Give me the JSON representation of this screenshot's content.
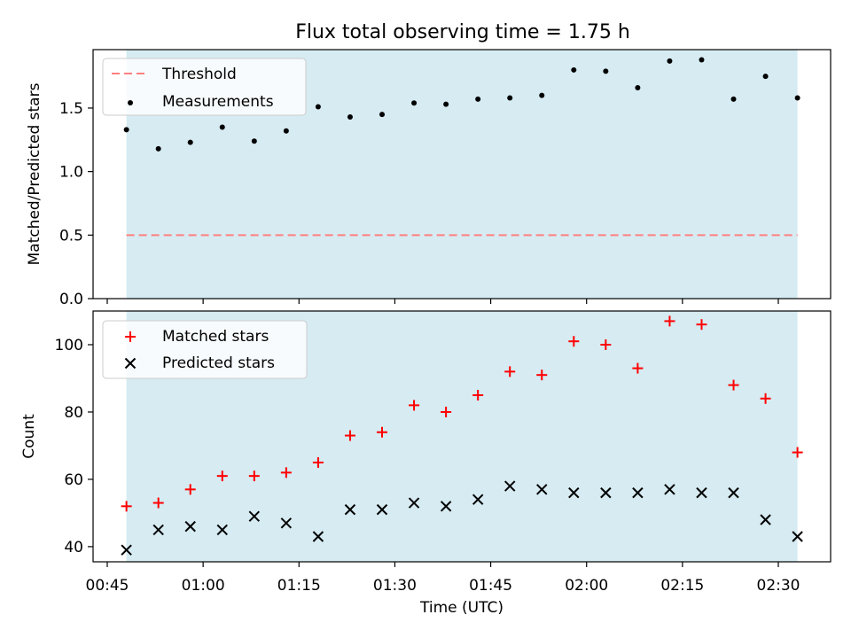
{
  "title": "Flux total observing time = 1.75 h",
  "colors": {
    "shade": "#add8e6",
    "threshold": "#ff7f7f",
    "measurement": "#000000",
    "matched": "#ff0000",
    "predicted": "#000000"
  },
  "chart_data": [
    {
      "type": "scatter",
      "ylabel": "Matched/Predicted stars",
      "ylim": [
        0,
        1.96
      ],
      "yticks": [
        "0.0",
        "0.5",
        "1.0",
        "1.5"
      ],
      "grid": false,
      "legend": {
        "placement": "top-left",
        "entries": [
          "Threshold",
          "Measurements"
        ]
      },
      "shaded_span": [
        "00:48",
        "02:33"
      ],
      "threshold": 0.5,
      "x": [
        "00:48",
        "00:53",
        "00:58",
        "01:03",
        "01:08",
        "01:13",
        "01:18",
        "01:23",
        "01:28",
        "01:33",
        "01:38",
        "01:43",
        "01:48",
        "01:53",
        "01:58",
        "02:03",
        "02:08",
        "02:13",
        "02:18",
        "02:23",
        "02:28",
        "02:33"
      ],
      "series": [
        {
          "name": "Measurements",
          "values": [
            1.33,
            1.18,
            1.23,
            1.35,
            1.24,
            1.32,
            1.51,
            1.43,
            1.45,
            1.54,
            1.53,
            1.57,
            1.58,
            1.6,
            1.8,
            1.79,
            1.66,
            1.87,
            1.88,
            1.57,
            1.75,
            1.58
          ]
        }
      ]
    },
    {
      "type": "scatter",
      "xlabel": "Time (UTC)",
      "ylabel": "Count",
      "ylim": [
        35.5,
        110
      ],
      "yticks": [
        "40",
        "60",
        "80",
        "100"
      ],
      "xticks": [
        "00:45",
        "01:00",
        "01:15",
        "01:30",
        "01:45",
        "02:00",
        "02:15",
        "02:30"
      ],
      "grid": false,
      "legend": {
        "placement": "top-left",
        "entries": [
          "Matched stars",
          "Predicted stars"
        ]
      },
      "shaded_span": [
        "00:48",
        "02:33"
      ],
      "x": [
        "00:48",
        "00:53",
        "00:58",
        "01:03",
        "01:08",
        "01:13",
        "01:18",
        "01:23",
        "01:28",
        "01:33",
        "01:38",
        "01:43",
        "01:48",
        "01:53",
        "01:58",
        "02:03",
        "02:08",
        "02:13",
        "02:18",
        "02:23",
        "02:28",
        "02:33"
      ],
      "series": [
        {
          "name": "Matched stars",
          "values": [
            52,
            53,
            57,
            61,
            61,
            62,
            65,
            73,
            74,
            82,
            80,
            85,
            92,
            91,
            101,
            100,
            93,
            107,
            106,
            88,
            84,
            68
          ]
        },
        {
          "name": "Predicted stars",
          "values": [
            39,
            45,
            46,
            45,
            49,
            47,
            43,
            51,
            51,
            53,
            52,
            54,
            58,
            57,
            56,
            56,
            56,
            57,
            56,
            56,
            48,
            43
          ]
        }
      ]
    }
  ]
}
